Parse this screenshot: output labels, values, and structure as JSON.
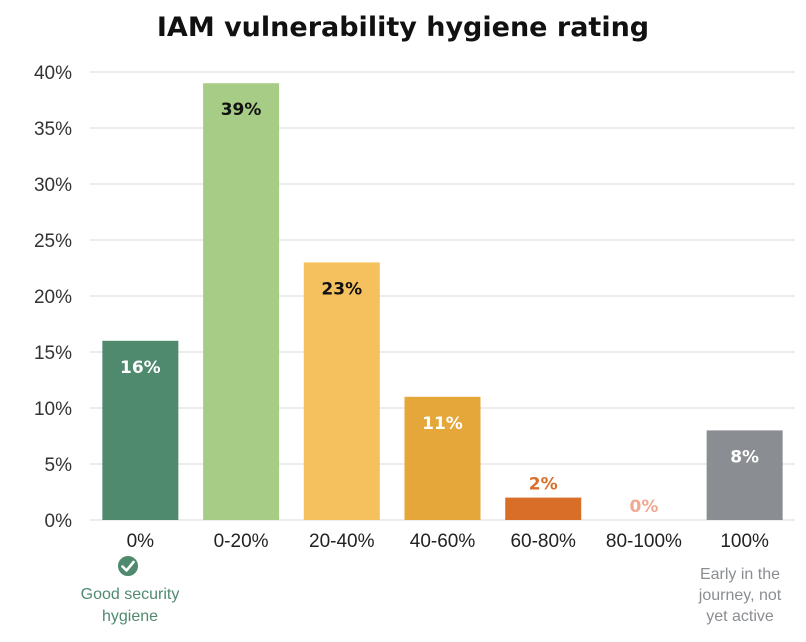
{
  "chart_data": {
    "type": "bar",
    "title": "IAM vulnerability hygiene rating",
    "categories": [
      "0%",
      "0-20%",
      "20-40%",
      "40-60%",
      "60-80%",
      "80-100%",
      "100%"
    ],
    "values": [
      16,
      39,
      23,
      11,
      2,
      0,
      8
    ],
    "value_labels": [
      "16%",
      "39%",
      "23%",
      "11%",
      "2%",
      "0%",
      "8%"
    ],
    "bar_colors": [
      "#4f8a6f",
      "#a6cc86",
      "#f5c15f",
      "#e5a63a",
      "#d96e28",
      "#f0a890",
      "#8a8d91"
    ],
    "label_colors": [
      "#ffffff",
      "#111111",
      "#111111",
      "#ffffff",
      "#d96e28",
      "#f0a890",
      "#ffffff"
    ],
    "ylim": [
      0,
      40
    ],
    "yticks": [
      "0%",
      "5%",
      "10%",
      "15%",
      "20%",
      "25%",
      "30%",
      "35%",
      "40%"
    ],
    "grid": true,
    "scale": {
      "left_label": "Good security hygiene",
      "right_label": "Early in the journey, not yet active",
      "gradient_colors": [
        "#4f8a6f",
        "#a6cc86",
        "#f5c15f",
        "#e5a63a",
        "#d96e28",
        "#f0a890"
      ]
    }
  }
}
